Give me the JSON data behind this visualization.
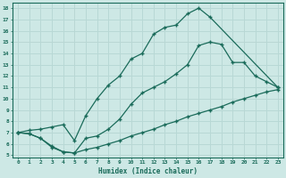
{
  "xlabel": "Humidex (Indice chaleur)",
  "bg_color": "#cde8e5",
  "line_color": "#1a6b5a",
  "grid_color": "#b8d8d5",
  "pink_grid": "#e8b8b8",
  "xlim": [
    -0.5,
    23.5
  ],
  "ylim": [
    4.8,
    18.5
  ],
  "xticks": [
    0,
    1,
    2,
    3,
    4,
    5,
    6,
    7,
    8,
    9,
    10,
    11,
    12,
    13,
    14,
    15,
    16,
    17,
    18,
    19,
    20,
    21,
    22,
    23
  ],
  "yticks": [
    5,
    6,
    7,
    8,
    9,
    10,
    11,
    12,
    13,
    14,
    15,
    16,
    17,
    18
  ],
  "line1_x": [
    0,
    1,
    2,
    3,
    4,
    5,
    6,
    7,
    8,
    9,
    10,
    11,
    12,
    13,
    14,
    15,
    16,
    17,
    23
  ],
  "line1_y": [
    7.0,
    7.2,
    7.3,
    7.5,
    7.7,
    6.3,
    8.5,
    10.0,
    11.2,
    12.0,
    13.5,
    14.0,
    15.7,
    16.3,
    16.5,
    17.5,
    18.0,
    17.2,
    11.0
  ],
  "line2_x": [
    0,
    1,
    2,
    3,
    4,
    5,
    6,
    7,
    8,
    9,
    10,
    11,
    12,
    13,
    14,
    15,
    16,
    17,
    18,
    19,
    20,
    21,
    22,
    23
  ],
  "line2_y": [
    7.0,
    6.9,
    6.5,
    5.7,
    5.3,
    5.2,
    6.5,
    6.7,
    7.3,
    8.2,
    9.5,
    10.5,
    11.0,
    11.5,
    12.2,
    13.0,
    14.7,
    15.0,
    14.8,
    13.2,
    13.2,
    12.0,
    11.5,
    11.0
  ],
  "line3_x": [
    0,
    1,
    2,
    3,
    4,
    5,
    6,
    7,
    8,
    9,
    10,
    11,
    12,
    13,
    14,
    15,
    16,
    17,
    18,
    19,
    20,
    21,
    22,
    23
  ],
  "line3_y": [
    7.0,
    6.9,
    6.5,
    5.8,
    5.3,
    5.2,
    5.5,
    5.7,
    6.0,
    6.3,
    6.7,
    7.0,
    7.3,
    7.7,
    8.0,
    8.4,
    8.7,
    9.0,
    9.3,
    9.7,
    10.0,
    10.3,
    10.6,
    10.8
  ]
}
